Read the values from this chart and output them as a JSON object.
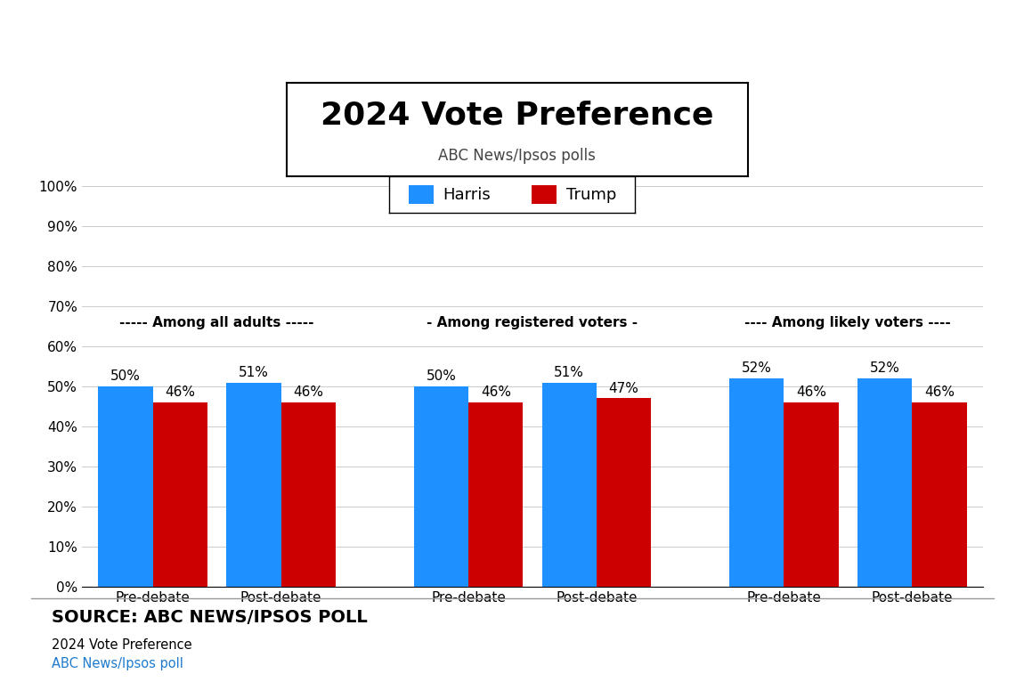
{
  "title": "2024 Vote Preference",
  "subtitle": "ABC News/Ipsos polls",
  "categories": [
    "Pre-debate",
    "Post-debate",
    "Pre-debate",
    "Post-debate",
    "Pre-debate",
    "Post-debate"
  ],
  "harris_values": [
    50,
    51,
    50,
    51,
    52,
    52
  ],
  "trump_values": [
    46,
    46,
    46,
    47,
    46,
    46
  ],
  "harris_color": "#1e90ff",
  "trump_color": "#cc0000",
  "group_label_texts": [
    "----- Among all adults -----",
    "- Among registered voters -",
    "---- Among likely voters ----"
  ],
  "ylim": [
    0,
    100
  ],
  "yticks": [
    0,
    10,
    20,
    30,
    40,
    50,
    60,
    70,
    80,
    90,
    100
  ],
  "ytick_labels": [
    "0%",
    "10%",
    "20%",
    "30%",
    "40%",
    "50%",
    "60%",
    "70%",
    "80%",
    "90%",
    "100%"
  ],
  "legend_labels": [
    "Harris",
    "Trump"
  ],
  "source_text": "SOURCE: ABC NEWS/IPSOS POLL",
  "footer_title": "2024 Vote Preference",
  "footer_subtitle": "ABC News/Ipsos poll",
  "footer_subtitle_color": "#1e7acc",
  "background_color": "#ffffff",
  "bar_width": 0.35,
  "title_fontsize": 26,
  "subtitle_fontsize": 12,
  "legend_fontsize": 13,
  "label_fontsize": 11,
  "value_fontsize": 11,
  "source_fontsize": 14
}
